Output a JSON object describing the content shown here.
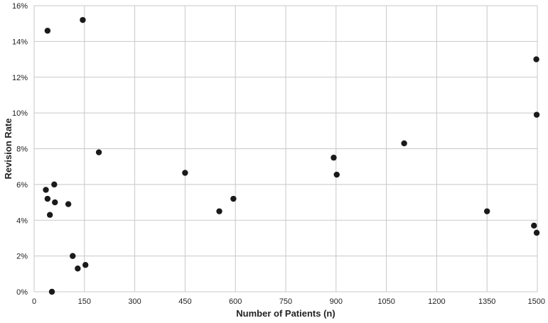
{
  "chart_data": {
    "type": "scatter",
    "title": "",
    "xlabel": "Number of Patients (n)",
    "ylabel": "Revision Rate",
    "xlim": [
      0,
      1500
    ],
    "ylim": [
      0,
      16
    ],
    "x_ticks": [
      0,
      150,
      300,
      450,
      600,
      750,
      900,
      1050,
      1200,
      1350,
      1500
    ],
    "y_ticks": [
      0,
      2,
      4,
      6,
      8,
      10,
      12,
      14,
      16
    ],
    "y_tick_labels": [
      "0%",
      "2%",
      "4%",
      "6%",
      "8%",
      "10%",
      "12%",
      "14%",
      "16%"
    ],
    "grid": true,
    "legend": "none",
    "marker_color": "#1a1a1a",
    "points": [
      {
        "x": 40,
        "y": 14.6
      },
      {
        "x": 145,
        "y": 15.2
      },
      {
        "x": 35,
        "y": 5.7
      },
      {
        "x": 40,
        "y": 5.2
      },
      {
        "x": 47,
        "y": 4.3
      },
      {
        "x": 60,
        "y": 6.0
      },
      {
        "x": 62,
        "y": 5.0
      },
      {
        "x": 102,
        "y": 4.9
      },
      {
        "x": 115,
        "y": 2.0
      },
      {
        "x": 130,
        "y": 1.3
      },
      {
        "x": 153,
        "y": 1.5
      },
      {
        "x": 53,
        "y": 0.0
      },
      {
        "x": 193,
        "y": 7.8
      },
      {
        "x": 450,
        "y": 6.65
      },
      {
        "x": 552,
        "y": 4.5
      },
      {
        "x": 594,
        "y": 5.2
      },
      {
        "x": 893,
        "y": 7.5
      },
      {
        "x": 902,
        "y": 6.55
      },
      {
        "x": 1103,
        "y": 8.3
      },
      {
        "x": 1350,
        "y": 4.5
      },
      {
        "x": 1490,
        "y": 3.7
      },
      {
        "x": 1497,
        "y": 13.0
      },
      {
        "x": 1498,
        "y": 9.9
      },
      {
        "x": 1498,
        "y": 3.3
      }
    ]
  }
}
